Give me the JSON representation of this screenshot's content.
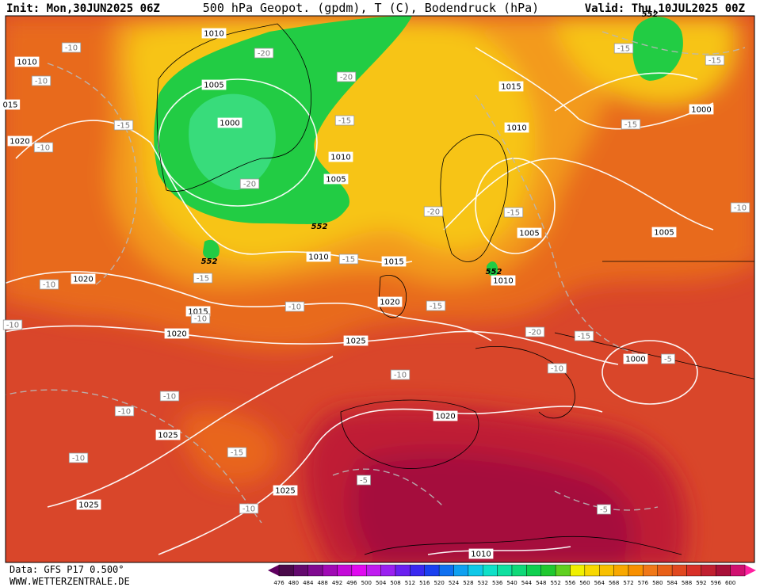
{
  "header": {
    "init": "Init: Mon,30JUN2025 06Z",
    "title": "500 hPa Geopot. (gpdm), T (C), Bodendruck (hPa)",
    "valid": "Valid: Thu,10JUL2025 00Z"
  },
  "map": {
    "pressure_labels": [
      "1010",
      "1010",
      "1005",
      "1015",
      "1000",
      "1010",
      "1000",
      "1020",
      "1010",
      "1005",
      "1005",
      "1005",
      "1010",
      "1015",
      "1010",
      "1020",
      "1020",
      "1015",
      "1020",
      "1025",
      "1000",
      "1020",
      "1025",
      "1025",
      "1025",
      "1010",
      "015"
    ],
    "temperature_labels": [
      "-10",
      "-20",
      "-20",
      "-10",
      "-15",
      "-15",
      "-15",
      "-15",
      "-10",
      "-15",
      "-20",
      "-20",
      "-15",
      "-10",
      "-15",
      "-15",
      "-10",
      "-10",
      "-10",
      "-15",
      "-10",
      "-20",
      "-15",
      "-5",
      "-10",
      "-10",
      "-10",
      "-10",
      "-15",
      "-10",
      "-5",
      "-5",
      "-10"
    ],
    "height_labels": [
      "552",
      "552",
      "552",
      "552"
    ]
  },
  "footer": {
    "source": "Data: GFS P17 0.500°",
    "website": "WWW.WETTERZENTRALE.DE"
  },
  "colorbar": {
    "labels": [
      476,
      480,
      484,
      488,
      492,
      496,
      500,
      504,
      508,
      512,
      516,
      520,
      524,
      528,
      532,
      536,
      540,
      544,
      548,
      552,
      556,
      560,
      564,
      568,
      572,
      576,
      580,
      584,
      588,
      592,
      596,
      600
    ]
  }
}
